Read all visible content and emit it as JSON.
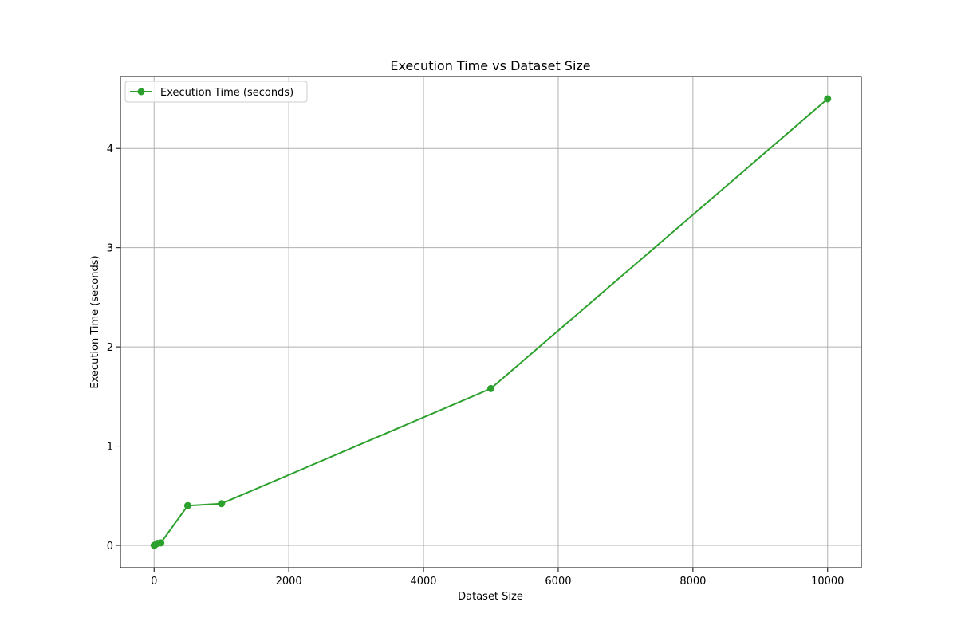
{
  "chart_data": {
    "type": "line",
    "title": "Execution Time vs Dataset Size",
    "xlabel": "Dataset Size",
    "ylabel": "Execution Time (seconds)",
    "xlim": [
      -500,
      10500
    ],
    "ylim": [
      -0.225,
      4.725
    ],
    "x_ticks": [
      0,
      2000,
      4000,
      6000,
      8000,
      10000
    ],
    "y_ticks": [
      0,
      1,
      2,
      3,
      4
    ],
    "grid": true,
    "legend_position": "top-left",
    "series": [
      {
        "name": "Execution Time (seconds)",
        "color": "#2ca02c",
        "marker": "circle",
        "x": [
          1,
          10,
          50,
          100,
          500,
          1000,
          5000,
          10000
        ],
        "y": [
          0.0,
          0.002,
          0.02,
          0.025,
          0.4,
          0.42,
          1.58,
          4.5
        ]
      }
    ]
  }
}
